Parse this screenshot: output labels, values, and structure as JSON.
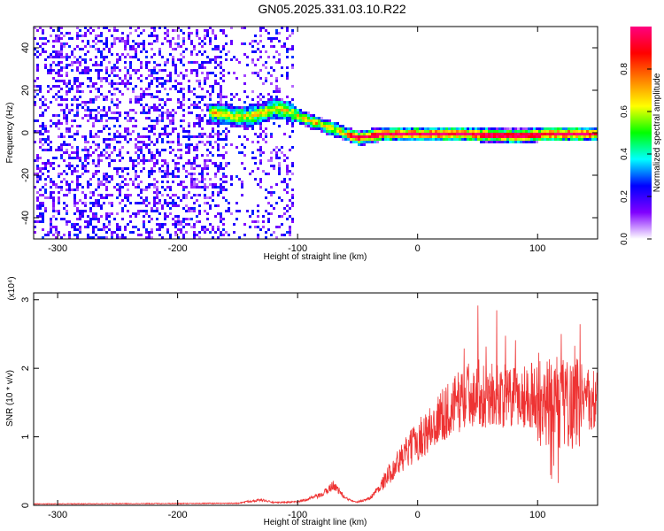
{
  "title": "GN05.2025.331.03.10.R22",
  "chart_data": [
    {
      "type": "heatmap",
      "xlabel": "Height of straight line (km)",
      "ylabel": "Frequency (Hz)",
      "xlim": [
        -320,
        150
      ],
      "ylim": [
        -50,
        50
      ],
      "xticks": [
        -300,
        -200,
        -100,
        0,
        100
      ],
      "yticks": [
        -40,
        -20,
        0,
        20,
        40
      ],
      "colorbar": {
        "label": "Normalized spectral amplitude",
        "range": [
          0,
          1
        ],
        "ticks": [
          "0.0",
          "0.2",
          "0.4",
          "0.6",
          "0.8"
        ],
        "colormap": [
          "#ffffff",
          "#8000ff",
          "#0000ff",
          "#00ffff",
          "#00ff00",
          "#ffff00",
          "#ff8000",
          "#ff0000",
          "#ff0080"
        ]
      },
      "ridge": {
        "x": [
          -170,
          -150,
          -135,
          -120,
          -110,
          -90,
          -75,
          -60,
          -50,
          -30,
          0,
          40,
          80,
          110,
          150
        ],
        "y": [
          10,
          8,
          9,
          12,
          11,
          6,
          3,
          0,
          -2,
          0,
          0,
          0,
          -1,
          0,
          0
        ]
      },
      "noise_region": {
        "x_from": -320,
        "x_to": -105
      }
    },
    {
      "type": "line",
      "xlabel": "Height of straight line (km)",
      "ylabel": "SNR (10 * v/v)",
      "y_multiplier": "(x10⁴)",
      "xlim": [
        -320,
        150
      ],
      "ylim": [
        0,
        3.1
      ],
      "xticks": [
        -300,
        -200,
        -100,
        0,
        100
      ],
      "yticks": [
        0,
        1,
        2,
        3
      ],
      "color": "#ee3333",
      "envelope": {
        "x": [
          -320,
          -150,
          -140,
          -130,
          -120,
          -100,
          -80,
          -70,
          -60,
          -50,
          -40,
          -30,
          -20,
          -10,
          0,
          10,
          20,
          30,
          40,
          50,
          60,
          70,
          80,
          90,
          100,
          110,
          120,
          130,
          140,
          150
        ],
        "y": [
          0.02,
          0.03,
          0.06,
          0.08,
          0.04,
          0.05,
          0.15,
          0.3,
          0.1,
          0.05,
          0.1,
          0.3,
          0.55,
          0.75,
          0.95,
          1.1,
          1.3,
          1.45,
          1.6,
          1.65,
          1.6,
          1.6,
          1.55,
          1.6,
          1.6,
          1.5,
          1.5,
          1.5,
          1.55,
          1.5
        ]
      }
    }
  ]
}
